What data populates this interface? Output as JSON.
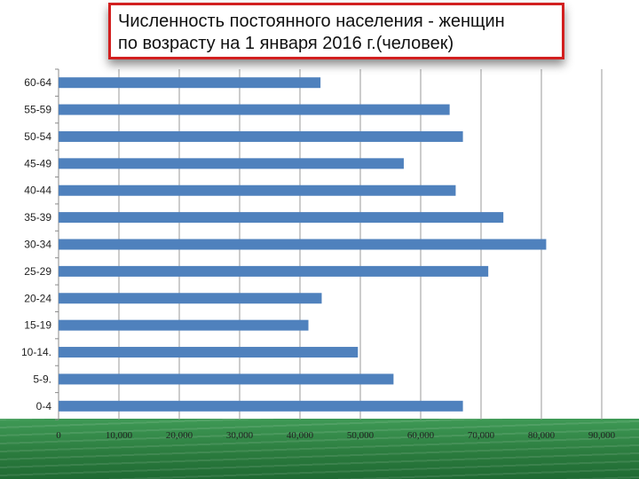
{
  "chart_data": {
    "type": "bar",
    "orientation": "horizontal",
    "title_lines": [
      "Численность постоянного населения - женщин",
      "по возрасту на 1 января 2016 г.(человек)"
    ],
    "categories": [
      "60-64",
      "55-59",
      "50-54",
      "45-49",
      "40-44",
      "35-39",
      "30-34",
      "25-29",
      "20-24",
      "15-19",
      "10-14.",
      "5-9.",
      "0-4"
    ],
    "values": [
      43400,
      64800,
      67000,
      57200,
      65800,
      73700,
      80800,
      71200,
      43600,
      41400,
      49600,
      55500,
      67000
    ],
    "xlim": [
      0,
      90000
    ],
    "xticks": [
      0,
      10000,
      20000,
      30000,
      40000,
      50000,
      60000,
      70000,
      80000,
      90000
    ],
    "xtick_labels": [
      "0",
      "10,000",
      "20,000",
      "30,000",
      "40,000",
      "50,000",
      "60,000",
      "70,000",
      "80,000",
      "90,000"
    ],
    "bar_color": "#4f81bd",
    "grid": true
  }
}
